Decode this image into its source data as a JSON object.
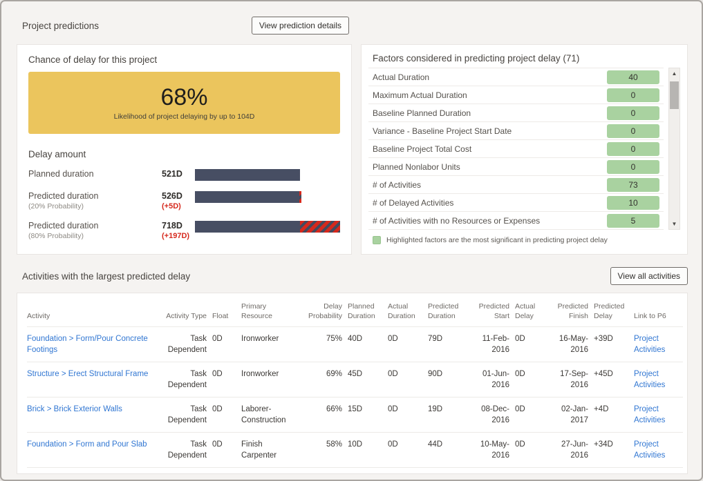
{
  "header": {
    "title": "Project predictions",
    "details_button": "View prediction details"
  },
  "chance_panel": {
    "title": "Chance of delay for this project",
    "percent": "68%",
    "caption": "Likelihood of project delaying by up to 104D",
    "accent_color": "#ebc55d"
  },
  "delay_chart": {
    "type": "bar",
    "title": "Delay amount",
    "bar_color": "#474e63",
    "delta_color": "#d6281c",
    "rows": [
      {
        "label": "Planned duration",
        "sublabel": "",
        "value": "521D",
        "delta": "",
        "bar_pct": 72.6,
        "hatch_pct": 0
      },
      {
        "label": "Predicted duration",
        "sublabel": "(20% Probability)",
        "value": "526D",
        "delta": "(+5D)",
        "bar_pct": 73.3,
        "hatch_pct": 2
      },
      {
        "label": "Predicted duration",
        "sublabel": "(80% Probability)",
        "value": "718D",
        "delta": "(+197D)",
        "bar_pct": 100,
        "hatch_pct": 27.5
      }
    ]
  },
  "factors_panel": {
    "title": "Factors considered in predicting project delay (71)",
    "badge_color": "#a9d2a0",
    "rows": [
      {
        "label": "Actual Duration",
        "value": "40"
      },
      {
        "label": "Maximum Actual Duration",
        "value": "0"
      },
      {
        "label": "Baseline Planned Duration",
        "value": "0"
      },
      {
        "label": "Variance - Baseline Project Start Date",
        "value": "0"
      },
      {
        "label": "Baseline Project Total Cost",
        "value": "0"
      },
      {
        "label": "Planned Nonlabor Units",
        "value": "0"
      },
      {
        "label": "# of Activities",
        "value": "73"
      },
      {
        "label": "# of Delayed Activities",
        "value": "10"
      },
      {
        "label": "# of Activities with no Resources or Expenses",
        "value": "5"
      }
    ],
    "legend": "Highlighted factors are the most significant in predicting project delay"
  },
  "activities": {
    "title": "Activities with the largest predicted delay",
    "view_all_button": "View all activities",
    "link_color": "#3076d2",
    "columns": [
      "Activity",
      "Activity Type",
      "Float",
      "Primary Resource",
      "Delay Probability",
      "Planned Duration",
      "Actual Duration",
      "Predicted Duration",
      "Predicted Start",
      "Actual Delay",
      "Predicted Finish",
      "Predicted Delay",
      "Link to P6"
    ],
    "rows": [
      {
        "activity": "Foundation > Form/Pour Concrete Footings",
        "type": "Task Dependent",
        "float": "0D",
        "resource": "Ironworker",
        "probability": "75%",
        "planned": "40D",
        "actual_dur": "0D",
        "predicted_dur": "79D",
        "start": "11-Feb-2016",
        "actual_delay": "0D",
        "finish": "16-May-2016",
        "delay": "+39D",
        "link": "Project Activities"
      },
      {
        "activity": "Structure > Erect Structural Frame",
        "type": "Task Dependent",
        "float": "0D",
        "resource": "Ironworker",
        "probability": "69%",
        "planned": "45D",
        "actual_dur": "0D",
        "predicted_dur": "90D",
        "start": "01-Jun-2016",
        "actual_delay": "0D",
        "finish": "17-Sep-2016",
        "delay": "+45D",
        "link": "Project Activities"
      },
      {
        "activity": "Brick > Brick Exterior Walls",
        "type": "Task Dependent",
        "float": "0D",
        "resource": "Laborer-Construction",
        "probability": "66%",
        "planned": "15D",
        "actual_dur": "0D",
        "predicted_dur": "19D",
        "start": "08-Dec-2016",
        "actual_delay": "0D",
        "finish": "02-Jan-2017",
        "delay": "+4D",
        "link": "Project Activities"
      },
      {
        "activity": "Foundation > Form and Pour Slab",
        "type": "Task Dependent",
        "float": "0D",
        "resource": "Finish Carpenter",
        "probability": "58%",
        "planned": "10D",
        "actual_dur": "0D",
        "predicted_dur": "44D",
        "start": "10-May-2016",
        "actual_delay": "0D",
        "finish": "27-Jun-2016",
        "delay": "+34D",
        "link": "Project Activities"
      }
    ]
  }
}
